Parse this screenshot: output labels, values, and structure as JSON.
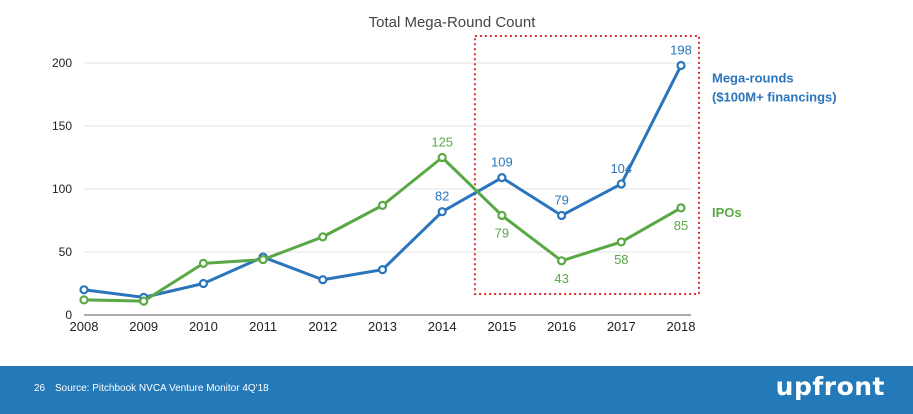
{
  "chart_data": {
    "type": "line",
    "title": "Total Mega-Round Count",
    "xlabel": "",
    "ylabel": "",
    "x": [
      2008,
      2009,
      2010,
      2011,
      2012,
      2013,
      2014,
      2015,
      2016,
      2017,
      2018
    ],
    "ylim": [
      0,
      200
    ],
    "yticks": [
      0,
      50,
      100,
      150,
      200
    ],
    "grid": true,
    "series": [
      {
        "name": "Mega-rounds ($100M+ financings)",
        "legend_lines": [
          "Mega-rounds",
          "($100M+ financings)"
        ],
        "color": "#2a75bb",
        "values": [
          20,
          14,
          25,
          46,
          28,
          36,
          82,
          109,
          79,
          104,
          198
        ],
        "labeled_points": [
          {
            "x": 2014,
            "label": "82",
            "position": "above"
          },
          {
            "x": 2015,
            "label": "109",
            "position": "above"
          },
          {
            "x": 2016,
            "label": "79",
            "position": "above"
          },
          {
            "x": 2017,
            "label": "104",
            "position": "above"
          },
          {
            "x": 2018,
            "label": "198",
            "position": "above"
          }
        ]
      },
      {
        "name": "IPOs",
        "legend_lines": [
          "IPOs"
        ],
        "color": "#5aa845",
        "values": [
          12,
          11,
          41,
          44,
          62,
          87,
          125,
          79,
          43,
          58,
          85
        ],
        "labeled_points": [
          {
            "x": 2014,
            "label": "125",
            "position": "above"
          },
          {
            "x": 2015,
            "label": "79",
            "position": "below"
          },
          {
            "x": 2016,
            "label": "43",
            "position": "below"
          },
          {
            "x": 2017,
            "label": "58",
            "position": "below"
          },
          {
            "x": 2018,
            "label": "85",
            "position": "below"
          }
        ]
      }
    ],
    "highlight": {
      "x_from": 2015,
      "x_to": 2018,
      "style": "dotted",
      "color": "#d9322e"
    }
  },
  "footer": {
    "slide_number": "26",
    "source": "Source: Pitchbook NVCA Venture Monitor 4Q'18",
    "brand": "upfront"
  },
  "colors": {
    "footer_bg": "#2479b8",
    "grid": "#e3e3e3",
    "axis": "#555555"
  }
}
